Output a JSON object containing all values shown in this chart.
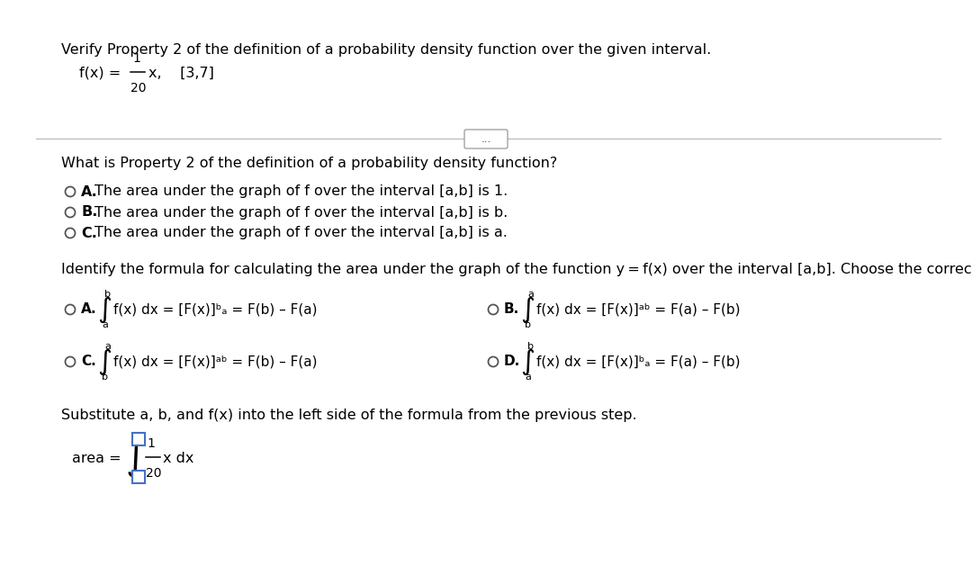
{
  "bg_color": "#ffffff",
  "text_color": "#000000",
  "blue_color": "#1a56c4",
  "radio_color": "#555555",
  "title": "Verify Property 2 of the definition of a probability density function over the given interval.",
  "fx_prefix": "f(x) = ",
  "fx_num": "1",
  "fx_den": "20",
  "fx_suffix": "x,    [3,7]",
  "q1": "What is Property 2 of the definition of a probability density function?",
  "A1": "The area under the graph of f over the interval [a,b] is 1.",
  "B1": "The area under the graph of f over the interval [a,b] is b.",
  "C1": "The area under the graph of f over the interval [a,b] is a.",
  "q2": "Identify the formula for calculating the area under the graph of the function y = f(x) over the interval [a,b]. Choose the correct answer below.",
  "q3": "Substitute a, b, and f(x) into the left side of the formula from the previous step.",
  "fontsize": 11.5,
  "fontsize_small": 9.5,
  "fontsize_formula": 11.0,
  "fontsize_superscript": 7.5,
  "fontsize_integral": 20
}
